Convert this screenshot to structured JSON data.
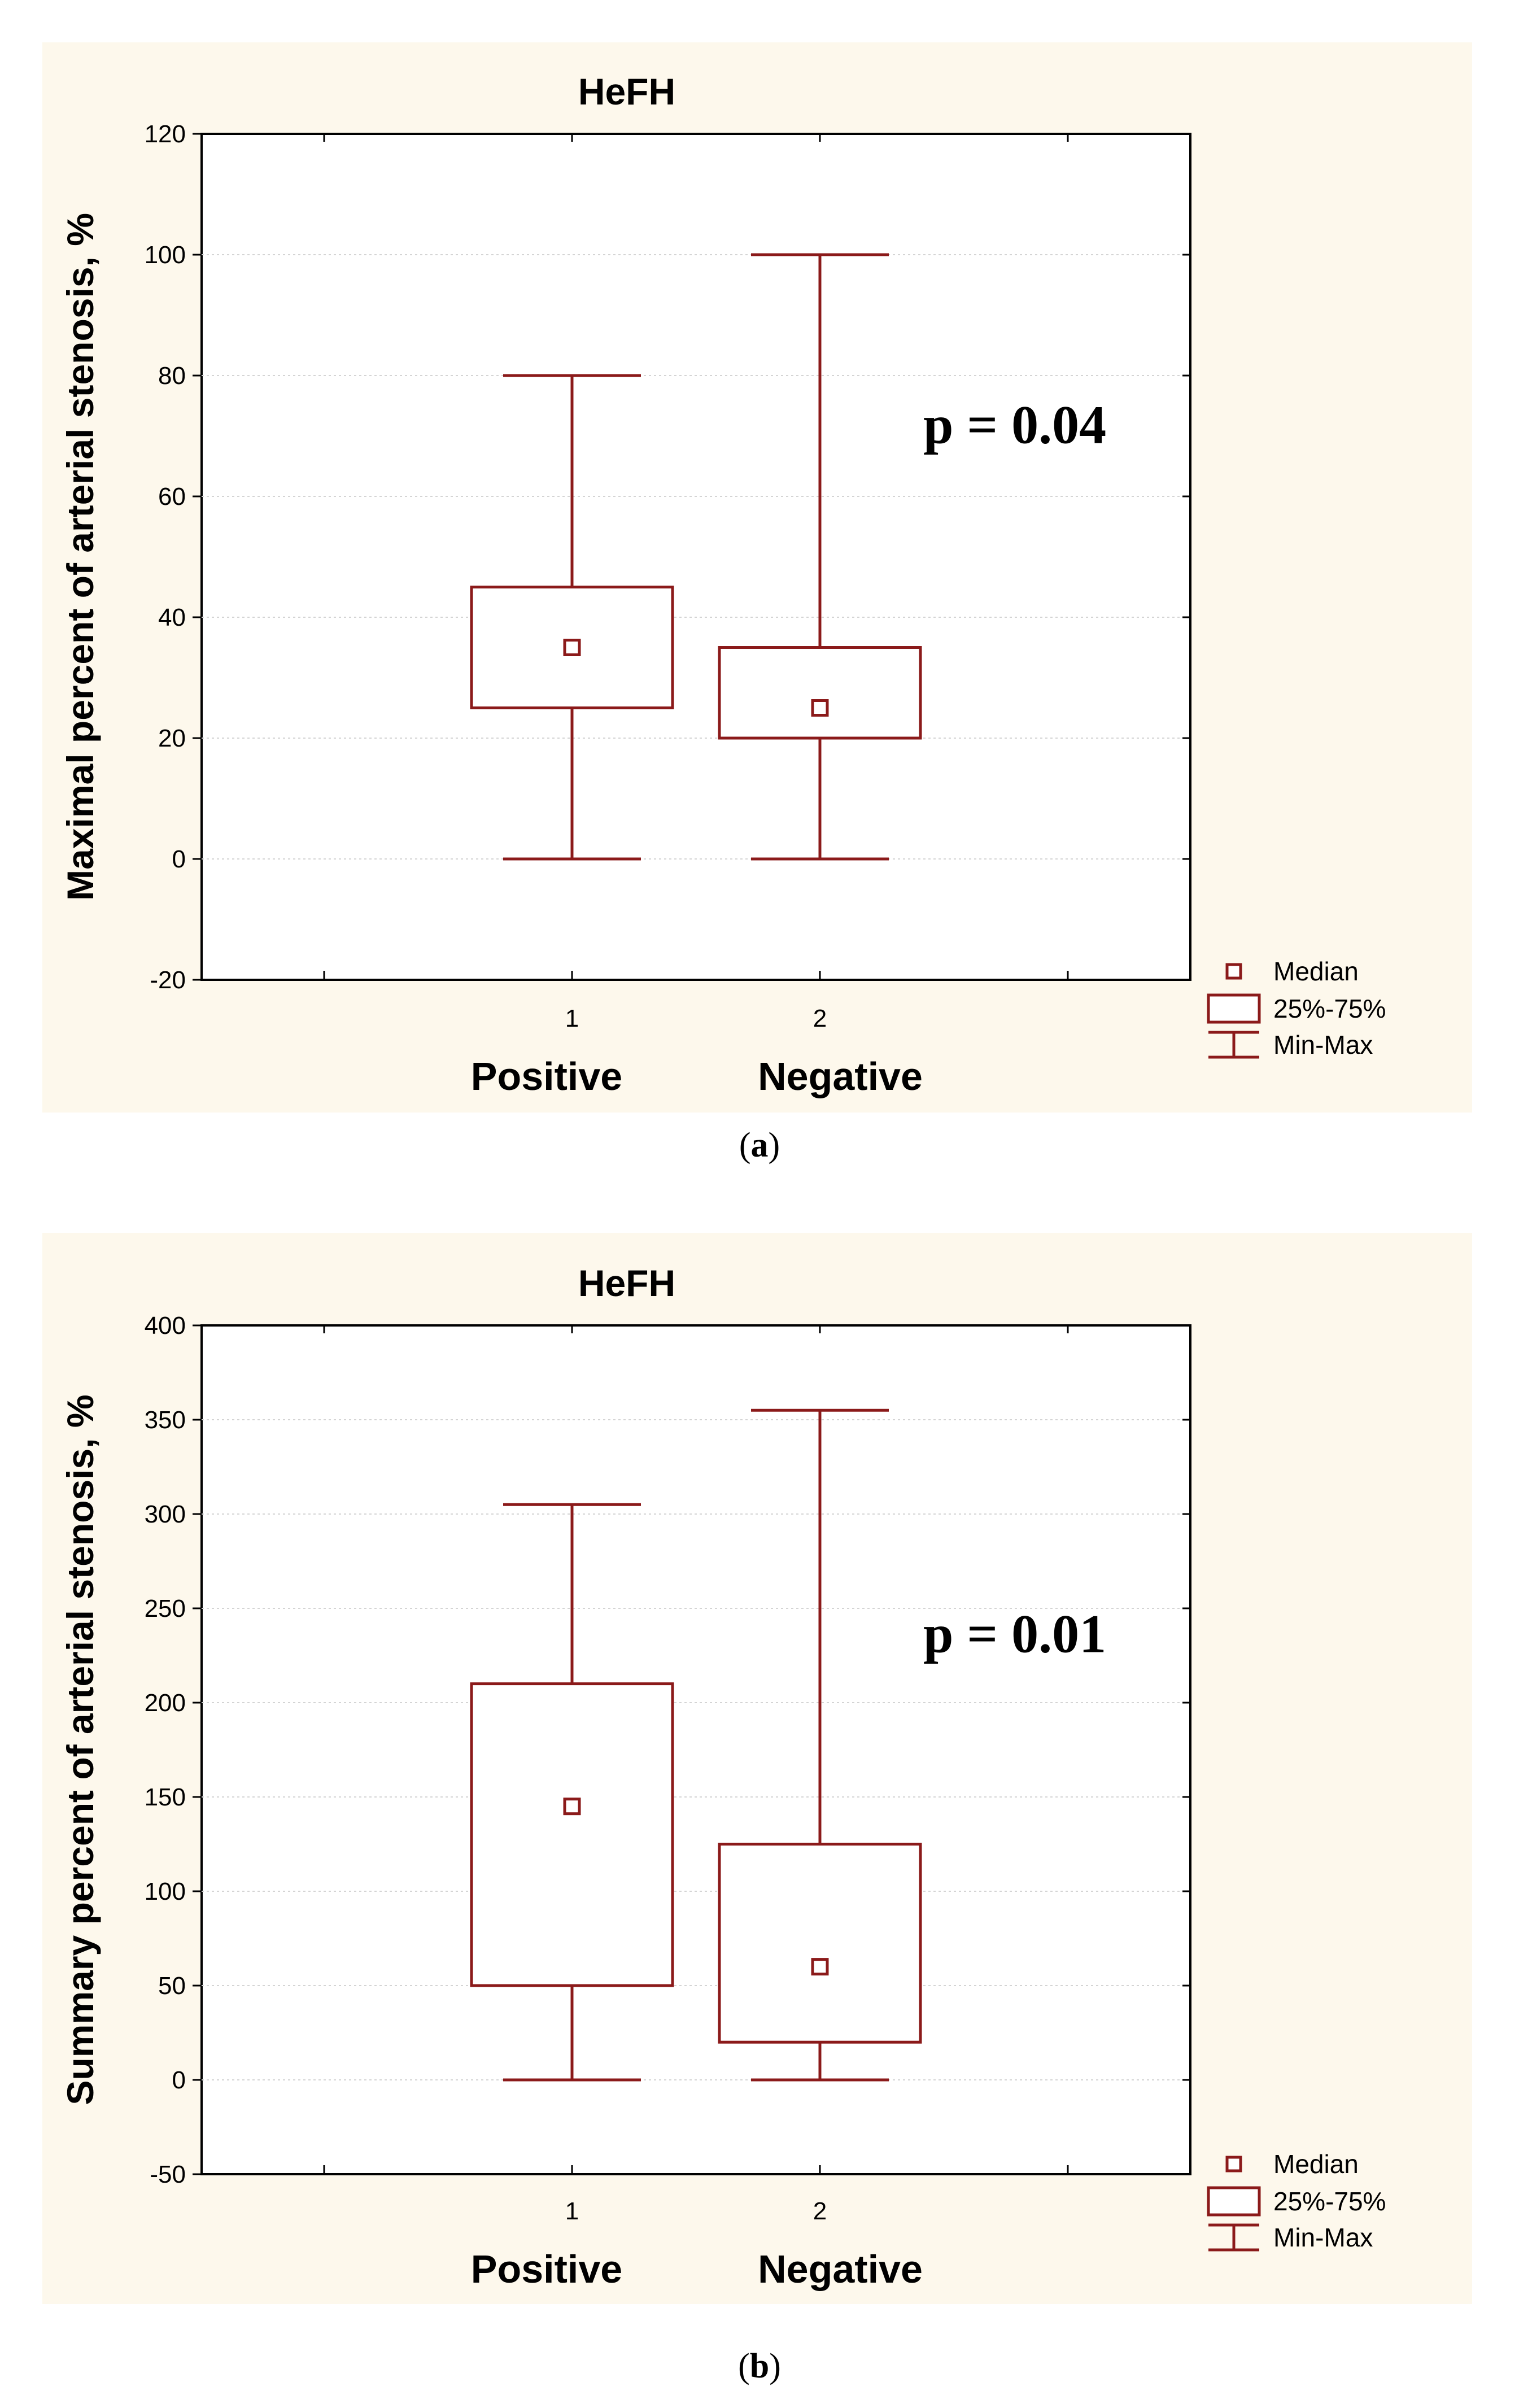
{
  "chart_data": [
    {
      "type": "box",
      "panel_label": "a",
      "title": "HeFH",
      "ylabel": "Maximal percent of arterial stenosis, %",
      "ylim": [
        -20,
        120
      ],
      "yticks": [
        -20,
        0,
        20,
        40,
        60,
        80,
        100,
        120
      ],
      "ytick_labels": [
        "-20",
        "0",
        "20",
        "40",
        "60",
        "80",
        "100",
        "120"
      ],
      "x_positions": [
        1,
        2
      ],
      "x_tick_labels": [
        "1",
        "2"
      ],
      "group_labels": [
        "Positive",
        "Negative"
      ],
      "boxes": [
        {
          "name": "Positive",
          "x": 1,
          "min": 0,
          "q1": 25,
          "median": 35,
          "q3": 45,
          "max": 80
        },
        {
          "name": "Negative",
          "x": 2,
          "min": 0,
          "q1": 20,
          "median": 25,
          "q3": 35,
          "max": 100
        }
      ],
      "annotation": "p = 0.04",
      "legend": [
        "Median",
        "25%-75%",
        "Min-Max"
      ]
    },
    {
      "type": "box",
      "panel_label": "b",
      "title": "HeFH",
      "ylabel": "Summary percent of arterial stenosis, %",
      "ylim": [
        -50,
        400
      ],
      "yticks": [
        -50,
        0,
        50,
        100,
        150,
        200,
        250,
        300,
        350,
        400
      ],
      "ytick_labels": [
        "-50",
        "0",
        "50",
        "100",
        "150",
        "200",
        "250",
        "300",
        "350",
        "400"
      ],
      "x_positions": [
        1,
        2
      ],
      "x_tick_labels": [
        "1",
        "2"
      ],
      "group_labels": [
        "Positive",
        "Negative"
      ],
      "boxes": [
        {
          "name": "Positive",
          "x": 1,
          "min": 0,
          "q1": 50,
          "median": 145,
          "q3": 210,
          "max": 305
        },
        {
          "name": "Negative",
          "x": 2,
          "min": 0,
          "q1": 20,
          "median": 60,
          "q3": 125,
          "max": 355
        }
      ],
      "annotation": "p = 0.01",
      "legend": [
        "Median",
        "25%-75%",
        "Min-Max"
      ]
    }
  ]
}
